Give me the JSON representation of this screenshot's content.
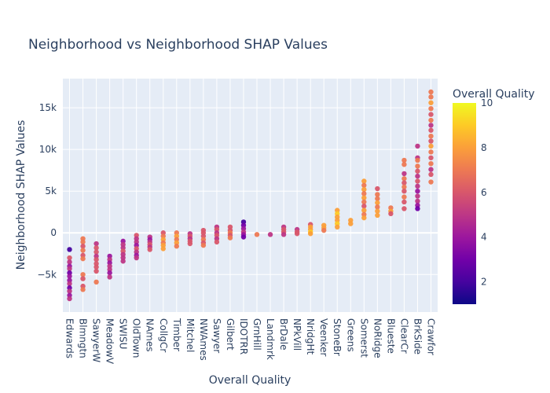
{
  "chart_data": {
    "type": "scatter",
    "title": "Neighborhood vs Neighborhood SHAP Values",
    "xlabel": "Overall Quality",
    "ylabel": "Neighborhood SHAP Values",
    "ylim": [
      -9500,
      18500
    ],
    "yticks": [
      -5000,
      0,
      5000,
      10000,
      15000
    ],
    "ytick_labels": [
      "−5k",
      "0",
      "5k",
      "10k",
      "15k"
    ],
    "grid": true,
    "colorbar": {
      "title": "Overall Quality",
      "range": [
        1,
        10
      ],
      "ticks": [
        2,
        4,
        6,
        8,
        10
      ],
      "tick_labels": [
        "2",
        "4",
        "6",
        "8",
        "10"
      ],
      "colorscale": [
        "#0d0887",
        "#46039f",
        "#7201a8",
        "#9c179e",
        "#bd3786",
        "#d8576b",
        "#ed7953",
        "#fb9f3a",
        "#fdca26",
        "#f0f921"
      ]
    },
    "categories": [
      "Edwards",
      "Blmngtn",
      "SawyerW",
      "MeadowV",
      "SWISU",
      "OldTown",
      "NAmes",
      "CollgCr",
      "Timber",
      "Mitchel",
      "NWAmes",
      "Sawyer",
      "Gilbert",
      "IDOTRR",
      "GrnHill",
      "Landmrk",
      "BrDale",
      "NPkVill",
      "NridgHt",
      "Veenker",
      "StoneBr",
      "Greens",
      "Somerst",
      "NoRidge",
      "Blueste",
      "ClearCr",
      "BrkSide",
      "Crawfor"
    ],
    "series": [
      {
        "points": [
          {
            "x": "Edwards",
            "y": -2000,
            "q": 2
          },
          {
            "x": "Edwards",
            "y": -3000,
            "q": 6
          },
          {
            "x": "Edwards",
            "y": -3500,
            "q": 5
          },
          {
            "x": "Edwards",
            "y": -4000,
            "q": 4
          },
          {
            "x": "Edwards",
            "y": -4300,
            "q": 5
          },
          {
            "x": "Edwards",
            "y": -4800,
            "q": 3
          },
          {
            "x": "Edwards",
            "y": -5200,
            "q": 4
          },
          {
            "x": "Edwards",
            "y": -5700,
            "q": 4
          },
          {
            "x": "Edwards",
            "y": -6100,
            "q": 5
          },
          {
            "x": "Edwards",
            "y": -6600,
            "q": 3
          },
          {
            "x": "Edwards",
            "y": -7000,
            "q": 5
          },
          {
            "x": "Edwards",
            "y": -7500,
            "q": 4
          },
          {
            "x": "Edwards",
            "y": -7900,
            "q": 5
          },
          {
            "x": "Blmngtn",
            "y": -700,
            "q": 7
          },
          {
            "x": "Blmngtn",
            "y": -1100,
            "q": 7
          },
          {
            "x": "Blmngtn",
            "y": -1600,
            "q": 6
          },
          {
            "x": "Blmngtn",
            "y": -2100,
            "q": 7
          },
          {
            "x": "Blmngtn",
            "y": -2700,
            "q": 6
          },
          {
            "x": "Blmngtn",
            "y": -3100,
            "q": 7
          },
          {
            "x": "Blmngtn",
            "y": -5000,
            "q": 7
          },
          {
            "x": "Blmngtn",
            "y": -5500,
            "q": 6
          },
          {
            "x": "Blmngtn",
            "y": -6400,
            "q": 6
          },
          {
            "x": "Blmngtn",
            "y": -6800,
            "q": 7
          },
          {
            "x": "SawyerW",
            "y": -1300,
            "q": 5
          },
          {
            "x": "SawyerW",
            "y": -1800,
            "q": 6
          },
          {
            "x": "SawyerW",
            "y": -2300,
            "q": 6
          },
          {
            "x": "SawyerW",
            "y": -2800,
            "q": 5
          },
          {
            "x": "SawyerW",
            "y": -3200,
            "q": 6
          },
          {
            "x": "SawyerW",
            "y": -3700,
            "q": 6
          },
          {
            "x": "SawyerW",
            "y": -4100,
            "q": 6
          },
          {
            "x": "SawyerW",
            "y": -4600,
            "q": 6
          },
          {
            "x": "SawyerW",
            "y": -5900,
            "q": 7
          },
          {
            "x": "MeadowV",
            "y": -2800,
            "q": 4
          },
          {
            "x": "MeadowV",
            "y": -3200,
            "q": 5
          },
          {
            "x": "MeadowV",
            "y": -3600,
            "q": 4
          },
          {
            "x": "MeadowV",
            "y": -4000,
            "q": 5
          },
          {
            "x": "MeadowV",
            "y": -4400,
            "q": 5
          },
          {
            "x": "MeadowV",
            "y": -4800,
            "q": 4
          },
          {
            "x": "MeadowV",
            "y": -5300,
            "q": 5
          },
          {
            "x": "SWISU",
            "y": -1000,
            "q": 4
          },
          {
            "x": "SWISU",
            "y": -1400,
            "q": 5
          },
          {
            "x": "SWISU",
            "y": -1800,
            "q": 5
          },
          {
            "x": "SWISU",
            "y": -2200,
            "q": 6
          },
          {
            "x": "SWISU",
            "y": -2600,
            "q": 5
          },
          {
            "x": "SWISU",
            "y": -3000,
            "q": 5
          },
          {
            "x": "SWISU",
            "y": -3400,
            "q": 5
          },
          {
            "x": "OldTown",
            "y": -300,
            "q": 6
          },
          {
            "x": "OldTown",
            "y": -700,
            "q": 5
          },
          {
            "x": "OldTown",
            "y": -1100,
            "q": 5
          },
          {
            "x": "OldTown",
            "y": -1500,
            "q": 4
          },
          {
            "x": "OldTown",
            "y": -1900,
            "q": 6
          },
          {
            "x": "OldTown",
            "y": -2300,
            "q": 5
          },
          {
            "x": "OldTown",
            "y": -2700,
            "q": 4
          },
          {
            "x": "OldTown",
            "y": -3000,
            "q": 5
          },
          {
            "x": "NAmes",
            "y": -500,
            "q": 5
          },
          {
            "x": "NAmes",
            "y": -800,
            "q": 4
          },
          {
            "x": "NAmes",
            "y": -1100,
            "q": 5
          },
          {
            "x": "NAmes",
            "y": -1400,
            "q": 6
          },
          {
            "x": "NAmes",
            "y": -1700,
            "q": 5
          },
          {
            "x": "NAmes",
            "y": -2000,
            "q": 6
          },
          {
            "x": "CollgCr",
            "y": 0,
            "q": 6
          },
          {
            "x": "CollgCr",
            "y": -400,
            "q": 7
          },
          {
            "x": "CollgCr",
            "y": -800,
            "q": 8
          },
          {
            "x": "CollgCr",
            "y": -1200,
            "q": 7
          },
          {
            "x": "CollgCr",
            "y": -1500,
            "q": 8
          },
          {
            "x": "CollgCr",
            "y": -1900,
            "q": 8
          },
          {
            "x": "Timber",
            "y": 0,
            "q": 7
          },
          {
            "x": "Timber",
            "y": -400,
            "q": 8
          },
          {
            "x": "Timber",
            "y": -800,
            "q": 7
          },
          {
            "x": "Timber",
            "y": -1200,
            "q": 8
          },
          {
            "x": "Timber",
            "y": -1600,
            "q": 7
          },
          {
            "x": "Mitchel",
            "y": -100,
            "q": 5
          },
          {
            "x": "Mitchel",
            "y": -400,
            "q": 6
          },
          {
            "x": "Mitchel",
            "y": -700,
            "q": 5
          },
          {
            "x": "Mitchel",
            "y": -1000,
            "q": 6
          },
          {
            "x": "Mitchel",
            "y": -1300,
            "q": 6
          },
          {
            "x": "NWAmes",
            "y": 300,
            "q": 6
          },
          {
            "x": "NWAmes",
            "y": 0,
            "q": 6
          },
          {
            "x": "NWAmes",
            "y": -400,
            "q": 6
          },
          {
            "x": "NWAmes",
            "y": -800,
            "q": 7
          },
          {
            "x": "NWAmes",
            "y": -1200,
            "q": 6
          },
          {
            "x": "NWAmes",
            "y": -1500,
            "q": 7
          },
          {
            "x": "Sawyer",
            "y": 700,
            "q": 5
          },
          {
            "x": "Sawyer",
            "y": 400,
            "q": 6
          },
          {
            "x": "Sawyer",
            "y": 0,
            "q": 5
          },
          {
            "x": "Sawyer",
            "y": -300,
            "q": 6
          },
          {
            "x": "Sawyer",
            "y": -700,
            "q": 5
          },
          {
            "x": "Sawyer",
            "y": -1100,
            "q": 6
          },
          {
            "x": "Gilbert",
            "y": 700,
            "q": 6
          },
          {
            "x": "Gilbert",
            "y": 300,
            "q": 6
          },
          {
            "x": "Gilbert",
            "y": 0,
            "q": 7
          },
          {
            "x": "Gilbert",
            "y": -300,
            "q": 6
          },
          {
            "x": "Gilbert",
            "y": -600,
            "q": 7
          },
          {
            "x": "IDOTRR",
            "y": 1300,
            "q": 2
          },
          {
            "x": "IDOTRR",
            "y": 900,
            "q": 3
          },
          {
            "x": "IDOTRR",
            "y": 500,
            "q": 4
          },
          {
            "x": "IDOTRR",
            "y": 100,
            "q": 5
          },
          {
            "x": "IDOTRR",
            "y": -200,
            "q": 4
          },
          {
            "x": "IDOTRR",
            "y": -500,
            "q": 3
          },
          {
            "x": "GrnHill",
            "y": -200,
            "q": 7
          },
          {
            "x": "Landmrk",
            "y": -200,
            "q": 5
          },
          {
            "x": "BrDale",
            "y": 700,
            "q": 5
          },
          {
            "x": "BrDale",
            "y": 400,
            "q": 6
          },
          {
            "x": "BrDale",
            "y": 100,
            "q": 6
          },
          {
            "x": "BrDale",
            "y": -200,
            "q": 5
          },
          {
            "x": "NPkVill",
            "y": 400,
            "q": 5
          },
          {
            "x": "NPkVill",
            "y": 100,
            "q": 6
          },
          {
            "x": "NPkVill",
            "y": -100,
            "q": 6
          },
          {
            "x": "NridgHt",
            "y": 1000,
            "q": 6
          },
          {
            "x": "NridgHt",
            "y": 700,
            "q": 8
          },
          {
            "x": "NridgHt",
            "y": 400,
            "q": 8
          },
          {
            "x": "NridgHt",
            "y": 100,
            "q": 9
          },
          {
            "x": "NridgHt",
            "y": -100,
            "q": 8
          },
          {
            "x": "Veenker",
            "y": 900,
            "q": 8
          },
          {
            "x": "Veenker",
            "y": 600,
            "q": 8
          },
          {
            "x": "Veenker",
            "y": 300,
            "q": 7
          },
          {
            "x": "StoneBr",
            "y": 2700,
            "q": 8
          },
          {
            "x": "StoneBr",
            "y": 2300,
            "q": 9
          },
          {
            "x": "StoneBr",
            "y": 1900,
            "q": 8
          },
          {
            "x": "StoneBr",
            "y": 1500,
            "q": 8
          },
          {
            "x": "StoneBr",
            "y": 1100,
            "q": 9
          },
          {
            "x": "StoneBr",
            "y": 700,
            "q": 8
          },
          {
            "x": "Greens",
            "y": 1500,
            "q": 8
          },
          {
            "x": "Greens",
            "y": 1100,
            "q": 8
          },
          {
            "x": "Somerst",
            "y": 6200,
            "q": 8
          },
          {
            "x": "Somerst",
            "y": 5700,
            "q": 7
          },
          {
            "x": "Somerst",
            "y": 5200,
            "q": 8
          },
          {
            "x": "Somerst",
            "y": 4700,
            "q": 7
          },
          {
            "x": "Somerst",
            "y": 4200,
            "q": 8
          },
          {
            "x": "Somerst",
            "y": 3700,
            "q": 7
          },
          {
            "x": "Somerst",
            "y": 3200,
            "q": 6
          },
          {
            "x": "Somerst",
            "y": 2700,
            "q": 8
          },
          {
            "x": "Somerst",
            "y": 2200,
            "q": 7
          },
          {
            "x": "Somerst",
            "y": 1800,
            "q": 8
          },
          {
            "x": "NoRidge",
            "y": 5300,
            "q": 6
          },
          {
            "x": "NoRidge",
            "y": 4600,
            "q": 7
          },
          {
            "x": "NoRidge",
            "y": 4100,
            "q": 7
          },
          {
            "x": "NoRidge",
            "y": 3600,
            "q": 8
          },
          {
            "x": "NoRidge",
            "y": 3100,
            "q": 7
          },
          {
            "x": "NoRidge",
            "y": 2600,
            "q": 8
          },
          {
            "x": "NoRidge",
            "y": 2100,
            "q": 8
          },
          {
            "x": "Blueste",
            "y": 3000,
            "q": 7
          },
          {
            "x": "Blueste",
            "y": 2600,
            "q": 8
          },
          {
            "x": "Blueste",
            "y": 2300,
            "q": 6
          },
          {
            "x": "ClearCr",
            "y": 8700,
            "q": 7
          },
          {
            "x": "ClearCr",
            "y": 8200,
            "q": 7
          },
          {
            "x": "ClearCr",
            "y": 7100,
            "q": 5
          },
          {
            "x": "ClearCr",
            "y": 6500,
            "q": 7
          },
          {
            "x": "ClearCr",
            "y": 6000,
            "q": 6
          },
          {
            "x": "ClearCr",
            "y": 5500,
            "q": 7
          },
          {
            "x": "ClearCr",
            "y": 5000,
            "q": 6
          },
          {
            "x": "ClearCr",
            "y": 4300,
            "q": 7
          },
          {
            "x": "ClearCr",
            "y": 3700,
            "q": 6
          },
          {
            "x": "ClearCr",
            "y": 2900,
            "q": 6
          },
          {
            "x": "BrkSide",
            "y": 10400,
            "q": 5
          },
          {
            "x": "BrkSide",
            "y": 9000,
            "q": 5
          },
          {
            "x": "BrkSide",
            "y": 8700,
            "q": 7
          },
          {
            "x": "BrkSide",
            "y": 8000,
            "q": 7
          },
          {
            "x": "BrkSide",
            "y": 7400,
            "q": 6
          },
          {
            "x": "BrkSide",
            "y": 6800,
            "q": 5
          },
          {
            "x": "BrkSide",
            "y": 6200,
            "q": 6
          },
          {
            "x": "BrkSide",
            "y": 5600,
            "q": 5
          },
          {
            "x": "BrkSide",
            "y": 5000,
            "q": 4
          },
          {
            "x": "BrkSide",
            "y": 4400,
            "q": 5
          },
          {
            "x": "BrkSide",
            "y": 3800,
            "q": 5
          },
          {
            "x": "BrkSide",
            "y": 3300,
            "q": 4
          },
          {
            "x": "BrkSide",
            "y": 2900,
            "q": 3
          },
          {
            "x": "Crawfor",
            "y": 16900,
            "q": 7
          },
          {
            "x": "Crawfor",
            "y": 16300,
            "q": 7
          },
          {
            "x": "Crawfor",
            "y": 15600,
            "q": 8
          },
          {
            "x": "Crawfor",
            "y": 14900,
            "q": 7
          },
          {
            "x": "Crawfor",
            "y": 14200,
            "q": 6
          },
          {
            "x": "Crawfor",
            "y": 13500,
            "q": 7
          },
          {
            "x": "Crawfor",
            "y": 12900,
            "q": 5
          },
          {
            "x": "Crawfor",
            "y": 12300,
            "q": 6
          },
          {
            "x": "Crawfor",
            "y": 11600,
            "q": 7
          },
          {
            "x": "Crawfor",
            "y": 11000,
            "q": 6
          },
          {
            "x": "Crawfor",
            "y": 10400,
            "q": 8
          },
          {
            "x": "Crawfor",
            "y": 9700,
            "q": 7
          },
          {
            "x": "Crawfor",
            "y": 9000,
            "q": 6
          },
          {
            "x": "Crawfor",
            "y": 8300,
            "q": 7
          },
          {
            "x": "Crawfor",
            "y": 7600,
            "q": 5
          },
          {
            "x": "Crawfor",
            "y": 7000,
            "q": 6
          },
          {
            "x": "Crawfor",
            "y": 6100,
            "q": 7
          }
        ]
      }
    ]
  }
}
